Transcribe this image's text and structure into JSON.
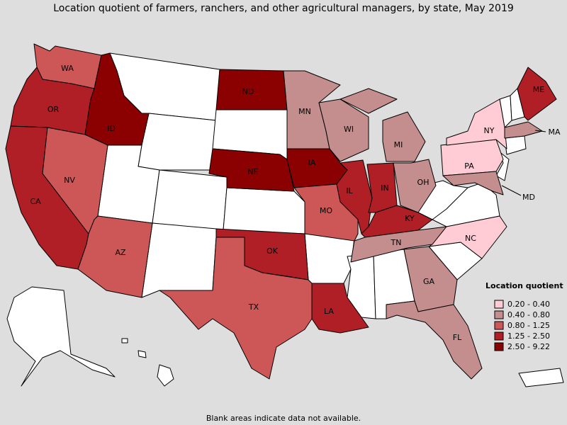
{
  "title": "Location quotient of farmers, ranchers, and other agricultural managers, by state, May 2019",
  "legend": {
    "title": "Location quotient",
    "items": [
      {
        "label": "0.20 - 0.40",
        "color": "#ffccd6"
      },
      {
        "label": "0.40 - 0.80",
        "color": "#c48e8e"
      },
      {
        "label": "0.80 - 1.25",
        "color": "#cd5656"
      },
      {
        "label": "1.25 - 2.50",
        "color": "#b01e26"
      },
      {
        "label": "2.50 - 9.22",
        "color": "#8b0000"
      }
    ]
  },
  "states": [
    {
      "label": "WA",
      "bin": 2
    },
    {
      "label": "OR",
      "bin": 3
    },
    {
      "label": "ID",
      "bin": 4
    },
    {
      "label": "CA",
      "bin": 3
    },
    {
      "label": "NV",
      "bin": 2
    },
    {
      "label": "AZ",
      "bin": 2
    },
    {
      "label": "ND",
      "bin": 4
    },
    {
      "label": "NE",
      "bin": 4
    },
    {
      "label": "IA",
      "bin": 4
    },
    {
      "label": "MN",
      "bin": 1
    },
    {
      "label": "WI",
      "bin": 1
    },
    {
      "label": "MI",
      "bin": 1
    },
    {
      "label": "IL",
      "bin": 3
    },
    {
      "label": "IN",
      "bin": 3
    },
    {
      "label": "OH",
      "bin": 1
    },
    {
      "label": "KY",
      "bin": 3
    },
    {
      "label": "TN",
      "bin": 1
    },
    {
      "label": "MO",
      "bin": 2
    },
    {
      "label": "OK",
      "bin": 3
    },
    {
      "label": "TX",
      "bin": 2
    },
    {
      "label": "LA",
      "bin": 3
    },
    {
      "label": "GA",
      "bin": 1
    },
    {
      "label": "FL",
      "bin": 1
    },
    {
      "label": "NC",
      "bin": 0
    },
    {
      "label": "PA",
      "bin": 0
    },
    {
      "label": "NY",
      "bin": 0
    },
    {
      "label": "MD",
      "bin": 1
    },
    {
      "label": "MA",
      "bin": 1
    },
    {
      "label": "ME",
      "bin": 3
    }
  ],
  "footnote": "Blank areas indicate data not available."
}
